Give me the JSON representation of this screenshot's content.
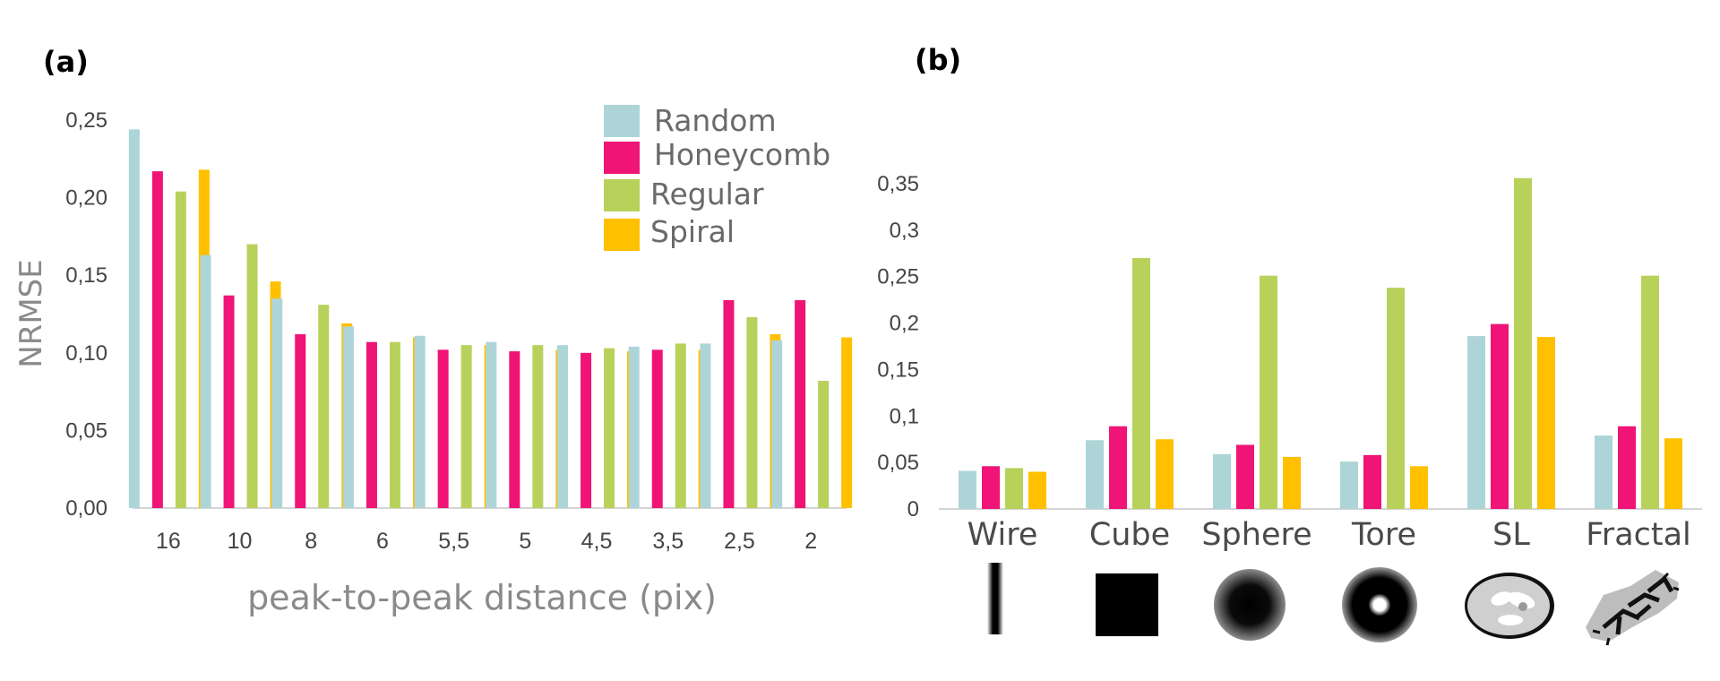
{
  "colors": {
    "Random": "#add5d8",
    "Honeycomb": "#ef1476",
    "Regular": "#b8d15a",
    "Spiral": "#ffc000"
  },
  "chart_data": [
    {
      "panel": "(a)",
      "type": "bar",
      "xlabel": "peak-to-peak distance (pix)",
      "ylabel": "NRMSE",
      "ylim": [
        0,
        0.25
      ],
      "yticks": [
        "0,00",
        "0,05",
        "0,10",
        "0,15",
        "0,20",
        "0,25"
      ],
      "categories": [
        "16",
        "10",
        "8",
        "6",
        "5,5",
        "5",
        "4,5",
        "3,5",
        "2,5",
        "2"
      ],
      "series": [
        {
          "name": "Random",
          "values": [
            0.244,
            0.163,
            0.135,
            0.117,
            0.111,
            0.107,
            0.105,
            0.104,
            0.106,
            0.108
          ]
        },
        {
          "name": "Honeycomb",
          "values": [
            0.217,
            0.137,
            0.112,
            0.107,
            0.102,
            0.101,
            0.1,
            0.102,
            0.134,
            0.134
          ]
        },
        {
          "name": "Regular",
          "values": [
            0.204,
            0.17,
            0.131,
            0.107,
            0.105,
            0.105,
            0.103,
            0.106,
            0.123,
            0.082
          ]
        },
        {
          "name": "Spiral",
          "values": [
            0.218,
            0.146,
            0.119,
            0.11,
            0.105,
            0.102,
            0.101,
            0.102,
            0.112,
            0.11
          ]
        }
      ],
      "legend": [
        "Random",
        "Honeycomb",
        "Regular",
        "Spiral"
      ],
      "legend_position": "top-right"
    },
    {
      "panel": "(b)",
      "type": "bar",
      "ylim": [
        0,
        0.35
      ],
      "yticks": [
        "0",
        "0,05",
        "0,1",
        "0,15",
        "0,2",
        "0,25",
        "0,3",
        "0,35"
      ],
      "categories": [
        "Wire",
        "Cube",
        "Sphere",
        "Tore",
        "SL",
        "Fractal"
      ],
      "series": [
        {
          "name": "Random",
          "values": [
            0.041,
            0.074,
            0.059,
            0.051,
            0.186,
            0.079
          ]
        },
        {
          "name": "Honeycomb",
          "values": [
            0.046,
            0.089,
            0.069,
            0.058,
            0.199,
            0.089
          ]
        },
        {
          "name": "Regular",
          "values": [
            0.044,
            0.27,
            0.251,
            0.238,
            0.356,
            0.251
          ]
        },
        {
          "name": "Spiral",
          "values": [
            0.04,
            0.075,
            0.056,
            0.046,
            0.185,
            0.076
          ]
        }
      ]
    }
  ]
}
